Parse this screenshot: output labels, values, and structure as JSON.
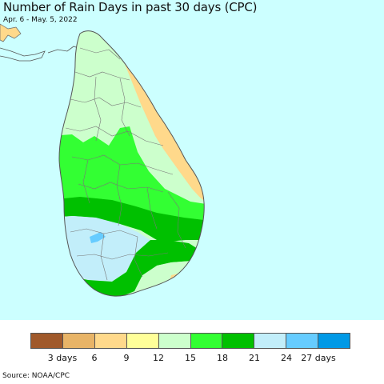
{
  "title": "Number of Rain Days in past 30 days (CPC)",
  "subtitle": "Apr. 6 - May. 5, 2022",
  "source": "Source: NOAA/CPC",
  "colors": {
    "ocean": "#ccffff",
    "land_border": "#666666",
    "district_border": "#777777"
  },
  "legend": {
    "colors": [
      "#a0592b",
      "#e8b467",
      "#ffd98b",
      "#ffff99",
      "#ccffcc",
      "#33ff33",
      "#00c000",
      "#c2eefa",
      "#66ccff",
      "#0099e6"
    ],
    "labels": [
      "3 days",
      "6",
      "9",
      "12",
      "15",
      "18",
      "21",
      "24",
      "27 days"
    ]
  }
}
